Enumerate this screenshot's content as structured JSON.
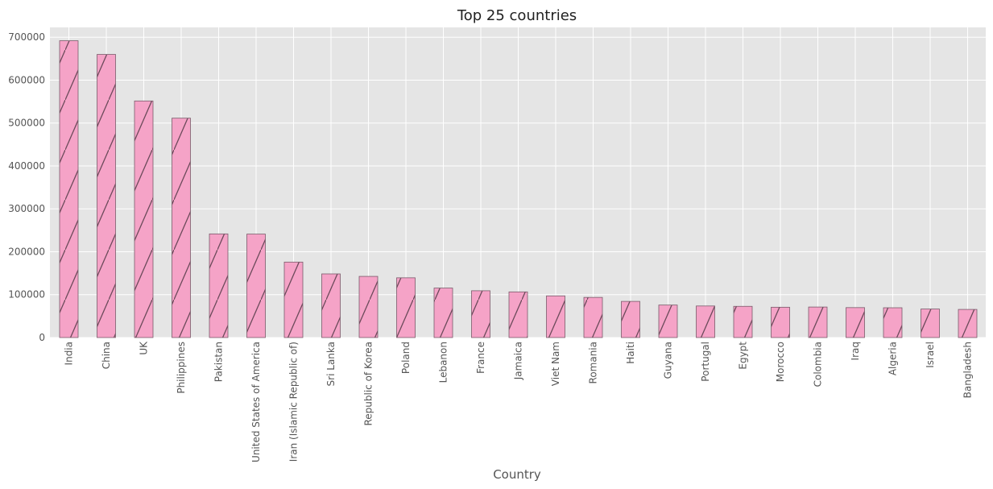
{
  "chart_data": {
    "type": "bar",
    "title": "Top 25 countries",
    "xlabel": "Country",
    "ylabel": "",
    "ylim": [
      0,
      723000
    ],
    "yticks": [
      0,
      100000,
      200000,
      300000,
      400000,
      500000,
      600000,
      700000
    ],
    "grid": true,
    "legend": "none",
    "categories": [
      "India",
      "China",
      "UK",
      "Philippines",
      "Pakistan",
      "United States of America",
      "Iran (Islamic Republic of)",
      "Sri Lanka",
      "Republic of Korea",
      "Poland",
      "Lebanon",
      "France",
      "Jamaica",
      "Viet Nam",
      "Romania",
      "Haiti",
      "Guyana",
      "Portugal",
      "Egypt",
      "Morocco",
      "Colombia",
      "Iraq",
      "Algeria",
      "Israel",
      "Bangladesh"
    ],
    "values": [
      691904,
      659962,
      551500,
      511391,
      241600,
      241122,
      175923,
      148358,
      142581,
      139241,
      115359,
      109091,
      106431,
      97146,
      93585,
      84308,
      75785,
      73595,
      72745,
      70692,
      71150,
      69789,
      69439,
      66508,
      65568
    ],
    "colors": {
      "bar_fill": "#f5a3c7",
      "bar_edge": "#7a5a6a",
      "hatch": "#6b4a5a",
      "plot_bg": "#e5e5e5",
      "grid": "#ffffff"
    }
  }
}
